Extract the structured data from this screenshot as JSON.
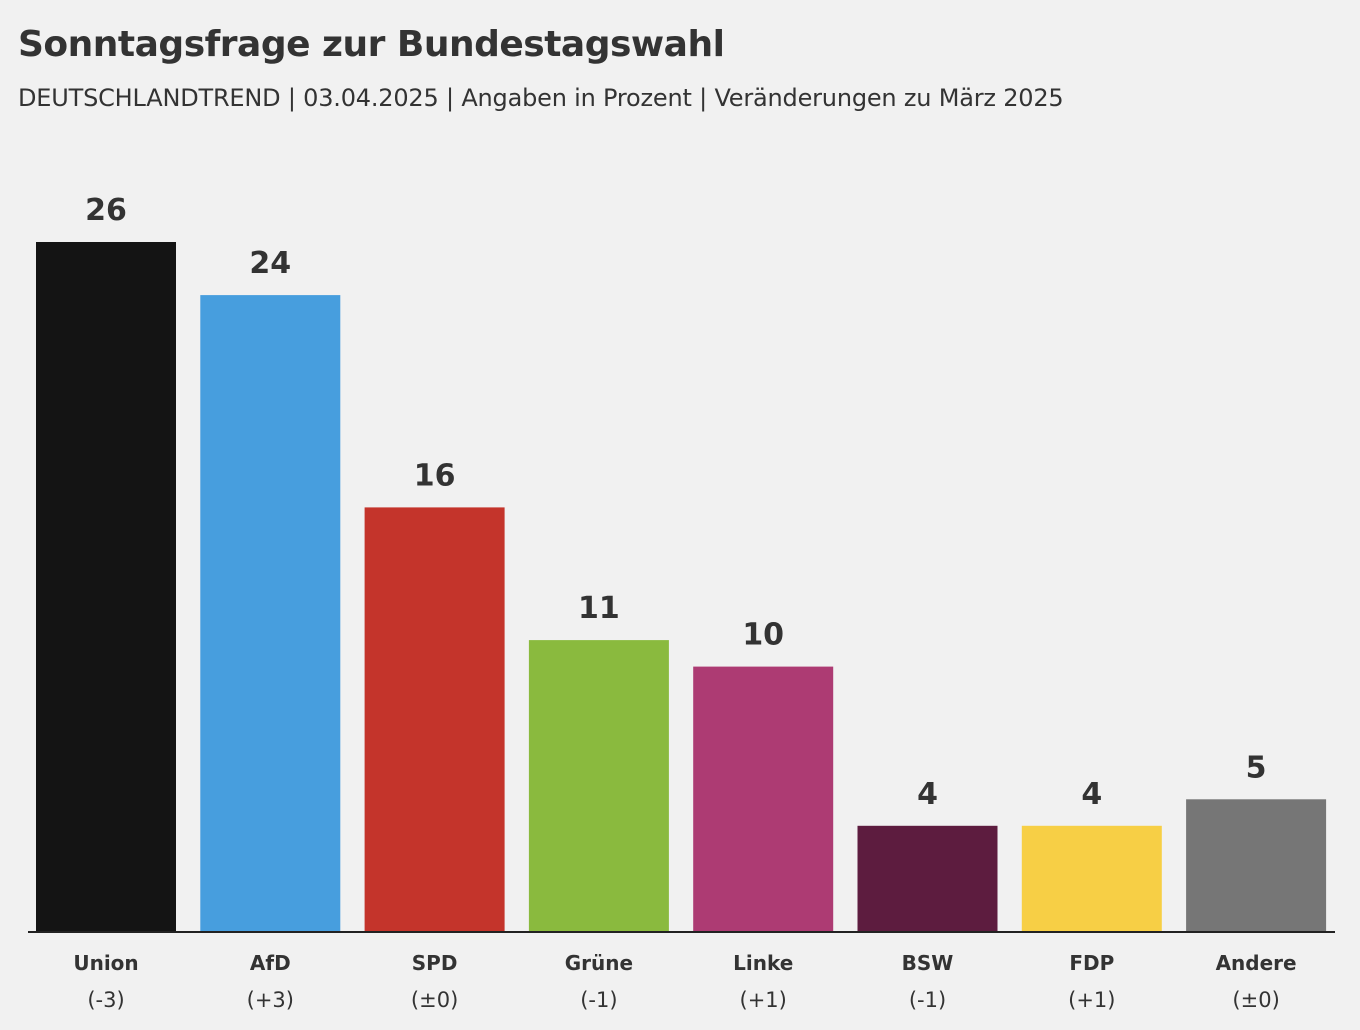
{
  "header": {
    "title": "Sonntagsfrage zur Bundestagswahl",
    "subtitle": "DEUTSCHLANDTREND | 03.04.2025 | Angaben in Prozent | Veränderungen zu März 2025"
  },
  "chart_data": {
    "type": "bar",
    "title": "Sonntagsfrage zur Bundestagswahl",
    "subtitle": "DEUTSCHLANDTREND | 03.04.2025 | Angaben in Prozent | Veränderungen zu März 2025",
    "xlabel": "",
    "ylabel": "",
    "grid": false,
    "categories": [
      "Union",
      "AfD",
      "SPD",
      "Grüne",
      "Linke",
      "BSW",
      "FDP",
      "Andere"
    ],
    "values": [
      26,
      24,
      16,
      11,
      10,
      4,
      4,
      5
    ],
    "value_labels": [
      "26",
      "24",
      "16",
      "11",
      "10",
      "4",
      "4",
      "5"
    ],
    "changes": [
      "(-3)",
      "(+3)",
      "(±0)",
      "(-1)",
      "(+1)",
      "(-1)",
      "(+1)",
      "(±0)"
    ],
    "colors": [
      "#141414",
      "#479ede",
      "#c4342b",
      "#8aba3e",
      "#ad3b73",
      "#5d1c3f",
      "#f7cf45",
      "#767676"
    ],
    "ylim": [
      0,
      26
    ]
  }
}
